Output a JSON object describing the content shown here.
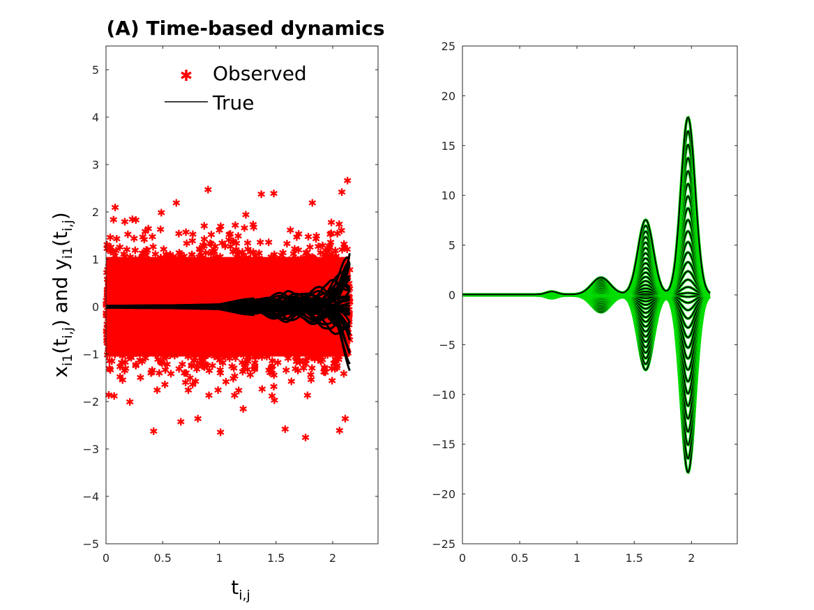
{
  "chart_data": [
    {
      "type": "scatter",
      "title": "(A) Time-based dynamics",
      "xlabel": "t_{i,j}",
      "ylabel": "x_{i1}(t_{i,j}) and y_{i1}(t_{i,j})",
      "xlim": [
        0,
        2.4
      ],
      "ylim": [
        -5,
        5.5
      ],
      "xticks": [
        0,
        0.5,
        1,
        1.5,
        2
      ],
      "xtick_labels": [
        "0",
        "0.5",
        "1",
        "1.5",
        "2"
      ],
      "yticks": [
        -5,
        -4,
        -3,
        -2,
        -1,
        0,
        1,
        2,
        3,
        4,
        5
      ],
      "ytick_labels": [
        "−5",
        "−4",
        "−3",
        "−2",
        "−1",
        "0",
        "1",
        "2",
        "3",
        "4",
        "5"
      ],
      "grid": false,
      "legend_position": "top",
      "series": [
        {
          "name": "Observed",
          "kind": "markers",
          "marker": "*",
          "color": "#ff0000",
          "x_range": [
            0,
            2.15
          ],
          "y_spread": 0.8,
          "outliers": [
            {
              "x": 0.42,
              "y": -2.62
            },
            {
              "x": 1.01,
              "y": -2.64
            },
            {
              "x": 1.58,
              "y": -2.57
            },
            {
              "x": 1.76,
              "y": -2.75
            },
            {
              "x": 2.06,
              "y": -2.6
            },
            {
              "x": 2.11,
              "y": -2.35
            },
            {
              "x": 0.9,
              "y": 2.48
            },
            {
              "x": 1.37,
              "y": 2.38
            },
            {
              "x": 1.48,
              "y": 2.4
            },
            {
              "x": 2.08,
              "y": 2.43
            },
            {
              "x": 2.13,
              "y": 2.67
            },
            {
              "x": 1.82,
              "y": 2.2
            },
            {
              "x": 0.08,
              "y": 2.1
            },
            {
              "x": 0.62,
              "y": 2.2
            },
            {
              "x": 0.21,
              "y": -2.0
            },
            {
              "x": 0.66,
              "y": -2.42
            },
            {
              "x": 1.21,
              "y": -2.15
            },
            {
              "x": 0.81,
              "y": -2.35
            }
          ]
        },
        {
          "name": "True",
          "kind": "lines",
          "color": "#000000",
          "x_range": [
            0,
            2.15
          ],
          "envelope_y": [
            {
              "x": 0,
              "y": 0.02
            },
            {
              "x": 0.6,
              "y": 0.03
            },
            {
              "x": 1.0,
              "y": 0.05
            },
            {
              "x": 1.2,
              "y": 0.15
            },
            {
              "x": 1.4,
              "y": 0.2
            },
            {
              "x": 1.6,
              "y": 0.35
            },
            {
              "x": 1.75,
              "y": 0.3
            },
            {
              "x": 1.95,
              "y": 0.5
            },
            {
              "x": 2.05,
              "y": 0.8
            },
            {
              "x": 2.15,
              "y": 1.35
            }
          ]
        }
      ]
    },
    {
      "type": "line",
      "title": "",
      "xlabel": "",
      "ylabel": "",
      "xlim": [
        0,
        2.4
      ],
      "ylim": [
        -25,
        25
      ],
      "xticks": [
        0,
        0.5,
        1,
        1.5,
        2
      ],
      "xtick_labels": [
        "0",
        "0.5",
        "1",
        "1.5",
        "2"
      ],
      "yticks": [
        -25,
        -20,
        -15,
        -10,
        -5,
        0,
        5,
        10,
        15,
        20,
        25
      ],
      "ytick_labels": [
        "−25",
        "−20",
        "−15",
        "−10",
        "−5",
        "0",
        "5",
        "10",
        "15",
        "20",
        "25"
      ],
      "grid": false,
      "series": [
        {
          "kind": "oscillating-envelope",
          "colors": [
            "#000000",
            "#00dd00"
          ],
          "lobes": [
            {
              "center": 0.78,
              "width": 0.1,
              "amplitude": 0.3
            },
            {
              "center": 1.21,
              "width": 0.17,
              "amplitude": 1.7
            },
            {
              "center": 1.6,
              "width": 0.14,
              "amplitude": 7.5
            },
            {
              "center": 1.97,
              "width": 0.13,
              "amplitude": 17.8
            }
          ],
          "x_range": [
            0,
            2.16
          ]
        }
      ]
    }
  ],
  "legend": {
    "observed_label": "Observed",
    "true_label": "True"
  }
}
